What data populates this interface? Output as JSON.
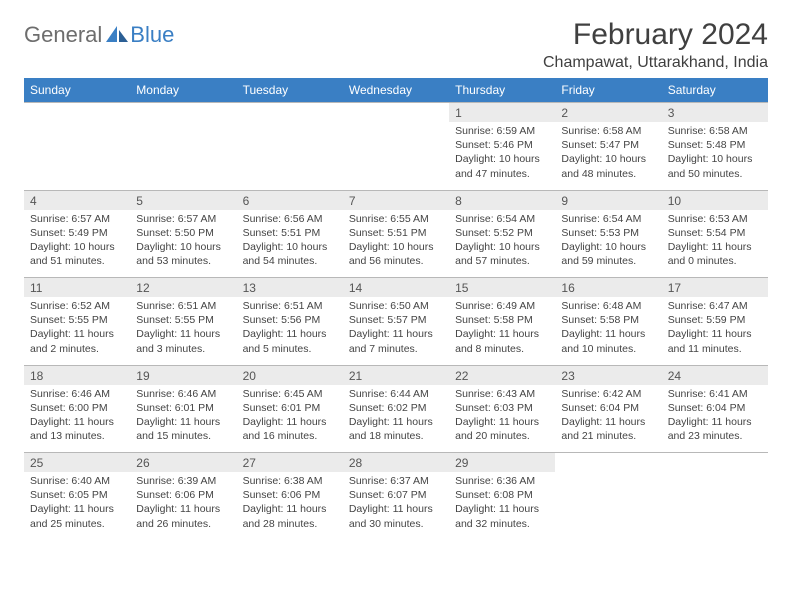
{
  "logo": {
    "text1": "General",
    "text2": "Blue"
  },
  "title": "February 2024",
  "location": "Champawat, Uttarakhand, India",
  "colors": {
    "header_bg": "#3a7fc4",
    "header_fg": "#ffffff",
    "daynum_bg": "#ebebeb",
    "border": "#c8c8c8",
    "logo_gray": "#6d6d6d",
    "logo_blue": "#3a7fc4"
  },
  "weekdays": [
    "Sunday",
    "Monday",
    "Tuesday",
    "Wednesday",
    "Thursday",
    "Friday",
    "Saturday"
  ],
  "weeks": [
    [
      null,
      null,
      null,
      null,
      {
        "n": "1",
        "sr": "6:59 AM",
        "ss": "5:46 PM",
        "dl": "10 hours and 47 minutes."
      },
      {
        "n": "2",
        "sr": "6:58 AM",
        "ss": "5:47 PM",
        "dl": "10 hours and 48 minutes."
      },
      {
        "n": "3",
        "sr": "6:58 AM",
        "ss": "5:48 PM",
        "dl": "10 hours and 50 minutes."
      }
    ],
    [
      {
        "n": "4",
        "sr": "6:57 AM",
        "ss": "5:49 PM",
        "dl": "10 hours and 51 minutes."
      },
      {
        "n": "5",
        "sr": "6:57 AM",
        "ss": "5:50 PM",
        "dl": "10 hours and 53 minutes."
      },
      {
        "n": "6",
        "sr": "6:56 AM",
        "ss": "5:51 PM",
        "dl": "10 hours and 54 minutes."
      },
      {
        "n": "7",
        "sr": "6:55 AM",
        "ss": "5:51 PM",
        "dl": "10 hours and 56 minutes."
      },
      {
        "n": "8",
        "sr": "6:54 AM",
        "ss": "5:52 PM",
        "dl": "10 hours and 57 minutes."
      },
      {
        "n": "9",
        "sr": "6:54 AM",
        "ss": "5:53 PM",
        "dl": "10 hours and 59 minutes."
      },
      {
        "n": "10",
        "sr": "6:53 AM",
        "ss": "5:54 PM",
        "dl": "11 hours and 0 minutes."
      }
    ],
    [
      {
        "n": "11",
        "sr": "6:52 AM",
        "ss": "5:55 PM",
        "dl": "11 hours and 2 minutes."
      },
      {
        "n": "12",
        "sr": "6:51 AM",
        "ss": "5:55 PM",
        "dl": "11 hours and 3 minutes."
      },
      {
        "n": "13",
        "sr": "6:51 AM",
        "ss": "5:56 PM",
        "dl": "11 hours and 5 minutes."
      },
      {
        "n": "14",
        "sr": "6:50 AM",
        "ss": "5:57 PM",
        "dl": "11 hours and 7 minutes."
      },
      {
        "n": "15",
        "sr": "6:49 AM",
        "ss": "5:58 PM",
        "dl": "11 hours and 8 minutes."
      },
      {
        "n": "16",
        "sr": "6:48 AM",
        "ss": "5:58 PM",
        "dl": "11 hours and 10 minutes."
      },
      {
        "n": "17",
        "sr": "6:47 AM",
        "ss": "5:59 PM",
        "dl": "11 hours and 11 minutes."
      }
    ],
    [
      {
        "n": "18",
        "sr": "6:46 AM",
        "ss": "6:00 PM",
        "dl": "11 hours and 13 minutes."
      },
      {
        "n": "19",
        "sr": "6:46 AM",
        "ss": "6:01 PM",
        "dl": "11 hours and 15 minutes."
      },
      {
        "n": "20",
        "sr": "6:45 AM",
        "ss": "6:01 PM",
        "dl": "11 hours and 16 minutes."
      },
      {
        "n": "21",
        "sr": "6:44 AM",
        "ss": "6:02 PM",
        "dl": "11 hours and 18 minutes."
      },
      {
        "n": "22",
        "sr": "6:43 AM",
        "ss": "6:03 PM",
        "dl": "11 hours and 20 minutes."
      },
      {
        "n": "23",
        "sr": "6:42 AM",
        "ss": "6:04 PM",
        "dl": "11 hours and 21 minutes."
      },
      {
        "n": "24",
        "sr": "6:41 AM",
        "ss": "6:04 PM",
        "dl": "11 hours and 23 minutes."
      }
    ],
    [
      {
        "n": "25",
        "sr": "6:40 AM",
        "ss": "6:05 PM",
        "dl": "11 hours and 25 minutes."
      },
      {
        "n": "26",
        "sr": "6:39 AM",
        "ss": "6:06 PM",
        "dl": "11 hours and 26 minutes."
      },
      {
        "n": "27",
        "sr": "6:38 AM",
        "ss": "6:06 PM",
        "dl": "11 hours and 28 minutes."
      },
      {
        "n": "28",
        "sr": "6:37 AM",
        "ss": "6:07 PM",
        "dl": "11 hours and 30 minutes."
      },
      {
        "n": "29",
        "sr": "6:36 AM",
        "ss": "6:08 PM",
        "dl": "11 hours and 32 minutes."
      },
      null,
      null
    ]
  ],
  "labels": {
    "sunrise": "Sunrise: ",
    "sunset": "Sunset: ",
    "daylight": "Daylight: "
  }
}
